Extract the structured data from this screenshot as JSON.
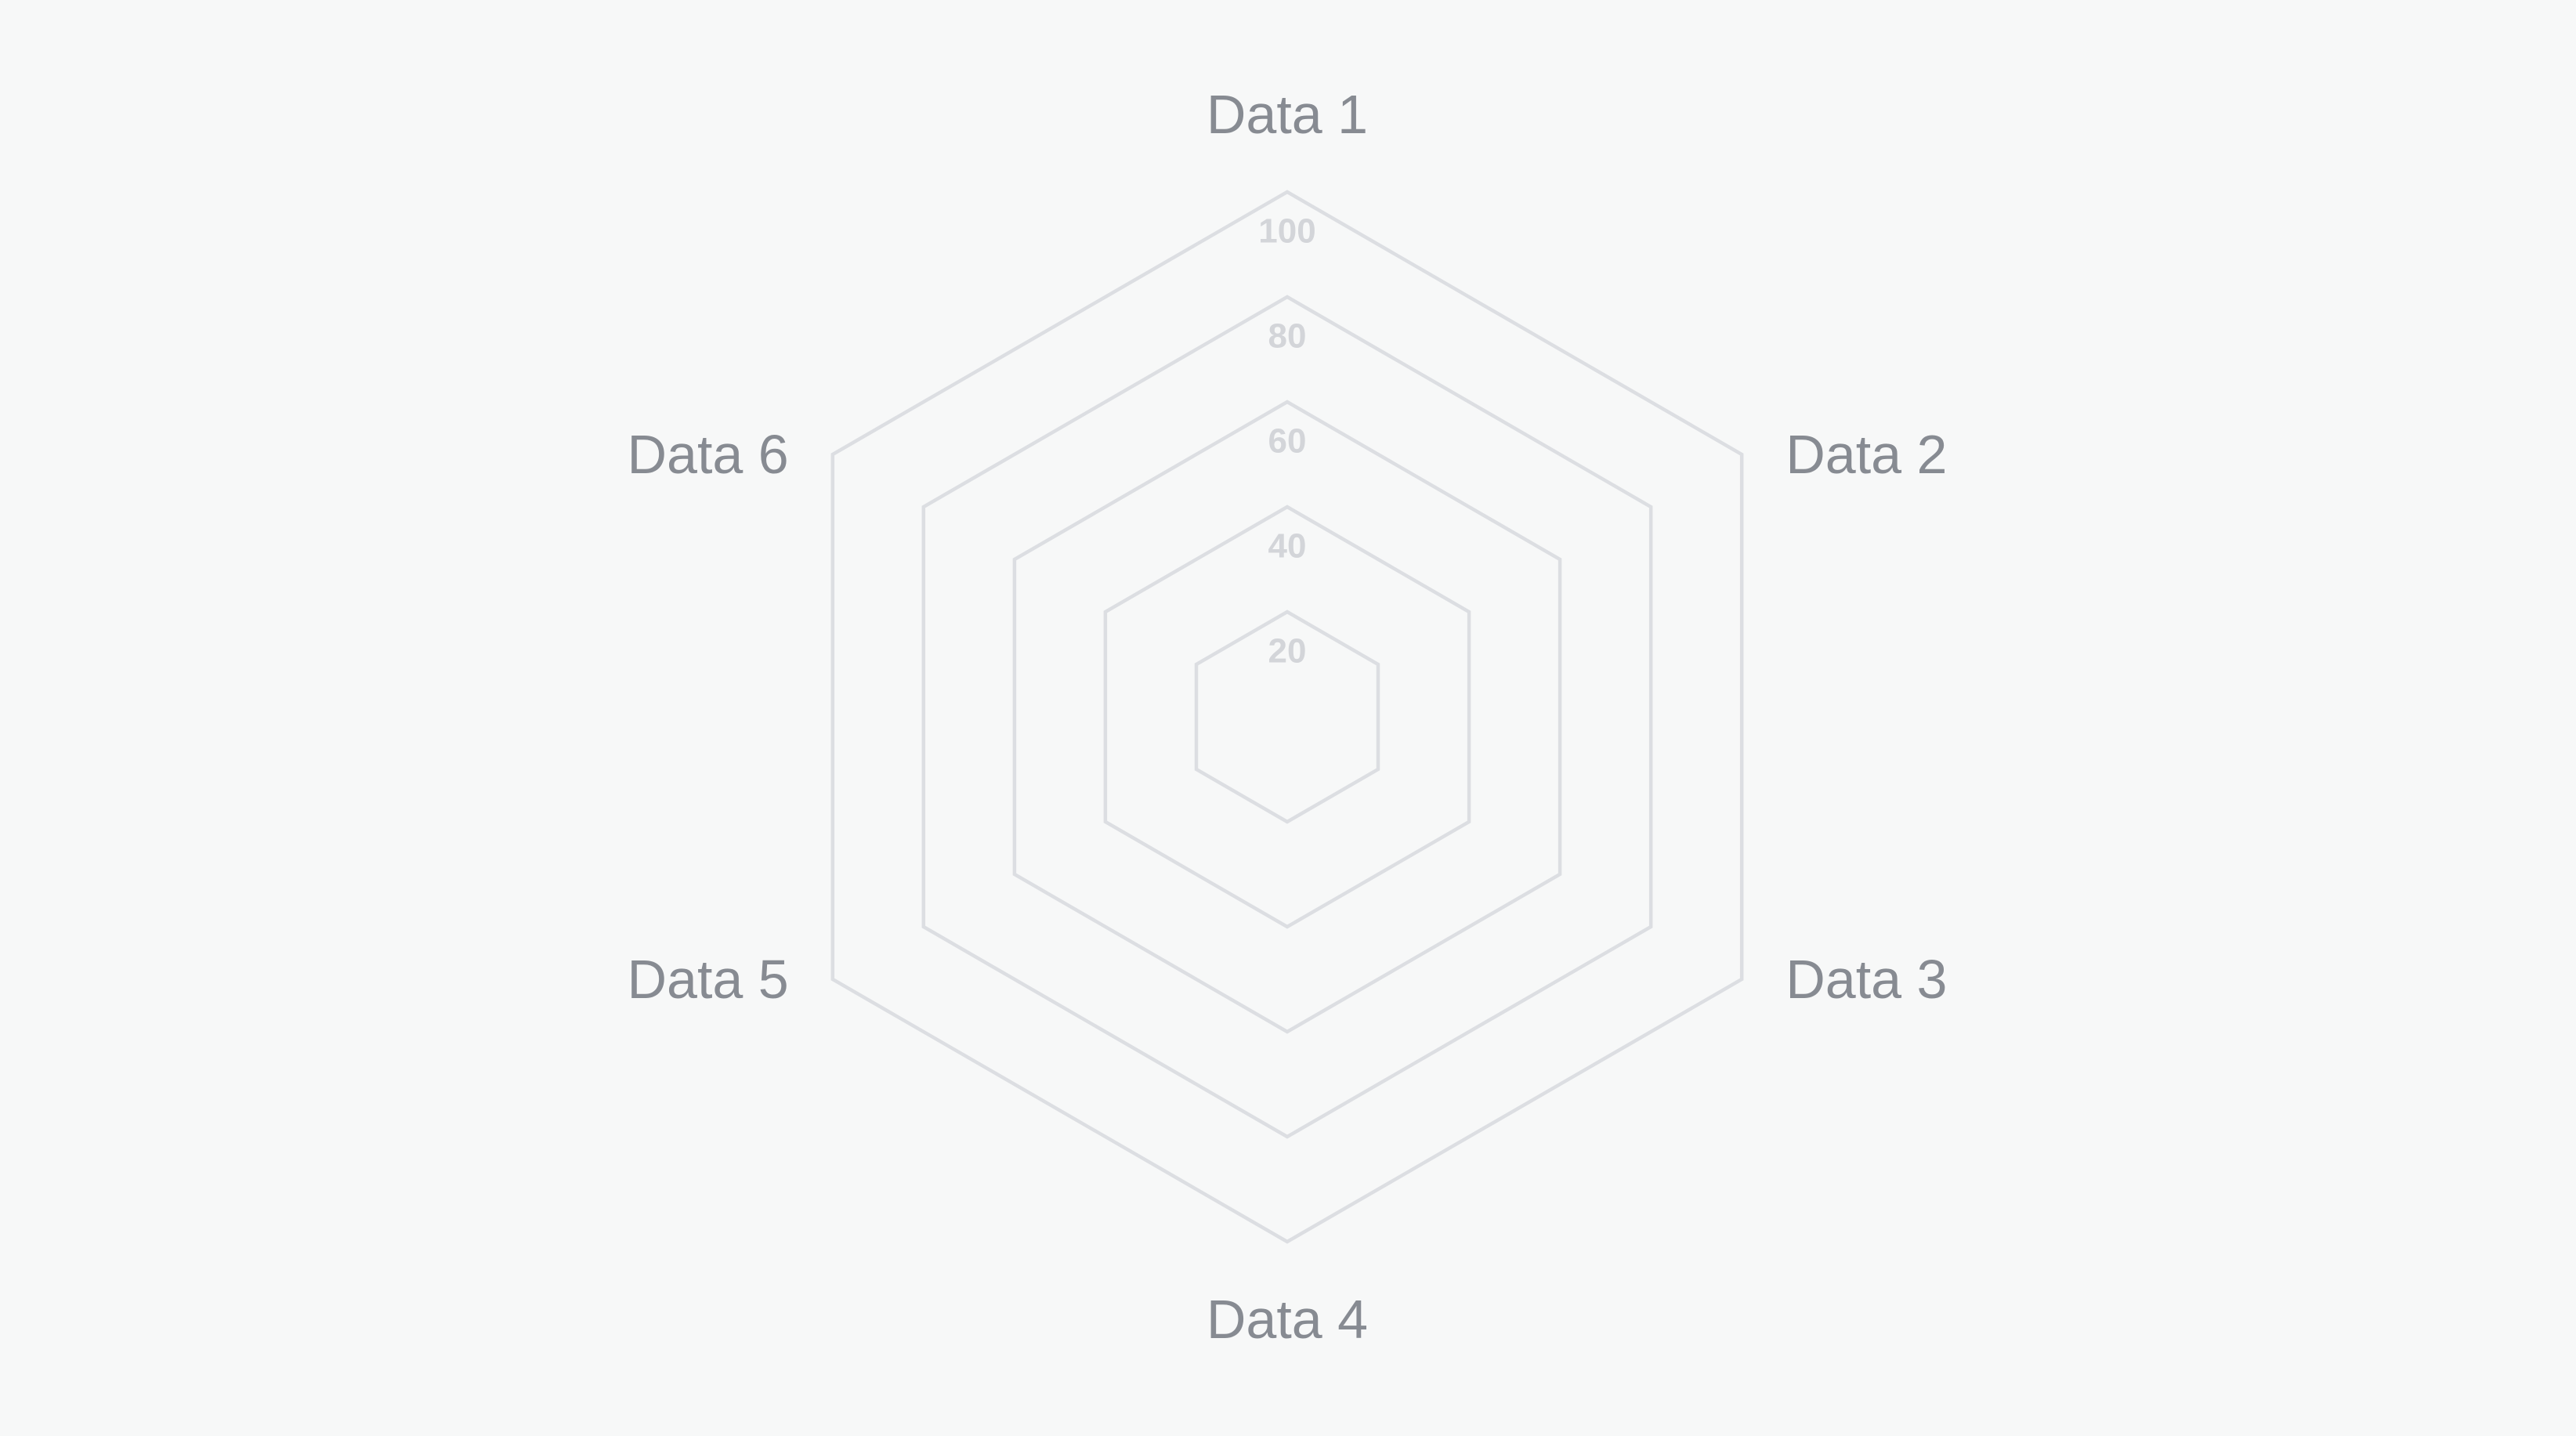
{
  "page": {
    "background": "#f7f8f8"
  },
  "chart_data": {
    "type": "radar",
    "title": "",
    "categories": [
      "Data 1",
      "Data 2",
      "Data 3",
      "Data 4",
      "Data 5",
      "Data 6"
    ],
    "series": [],
    "r_axis": {
      "min": 0,
      "max": 100,
      "step": 20,
      "ticks": [
        20,
        40,
        60,
        80,
        100
      ],
      "tick_axis": "vertical-top"
    },
    "grid": {
      "shape": "hexagon",
      "ring_count": 5,
      "angle_lines": false,
      "start_angle_deg": -90
    },
    "legend": {
      "visible": false
    },
    "colors": {
      "background": "#f7f8f8",
      "grid_line": "#dcdee2",
      "tick_label": "#d3d5d9",
      "category_label": "#878b92"
    },
    "layout": {
      "center_x": 1643,
      "center_y": 915,
      "radius": 670,
      "grid_stroke_width": 4.5,
      "tick_label_dy": 50,
      "category_gap_side": 56,
      "category_gap_vertical": 99
    }
  }
}
